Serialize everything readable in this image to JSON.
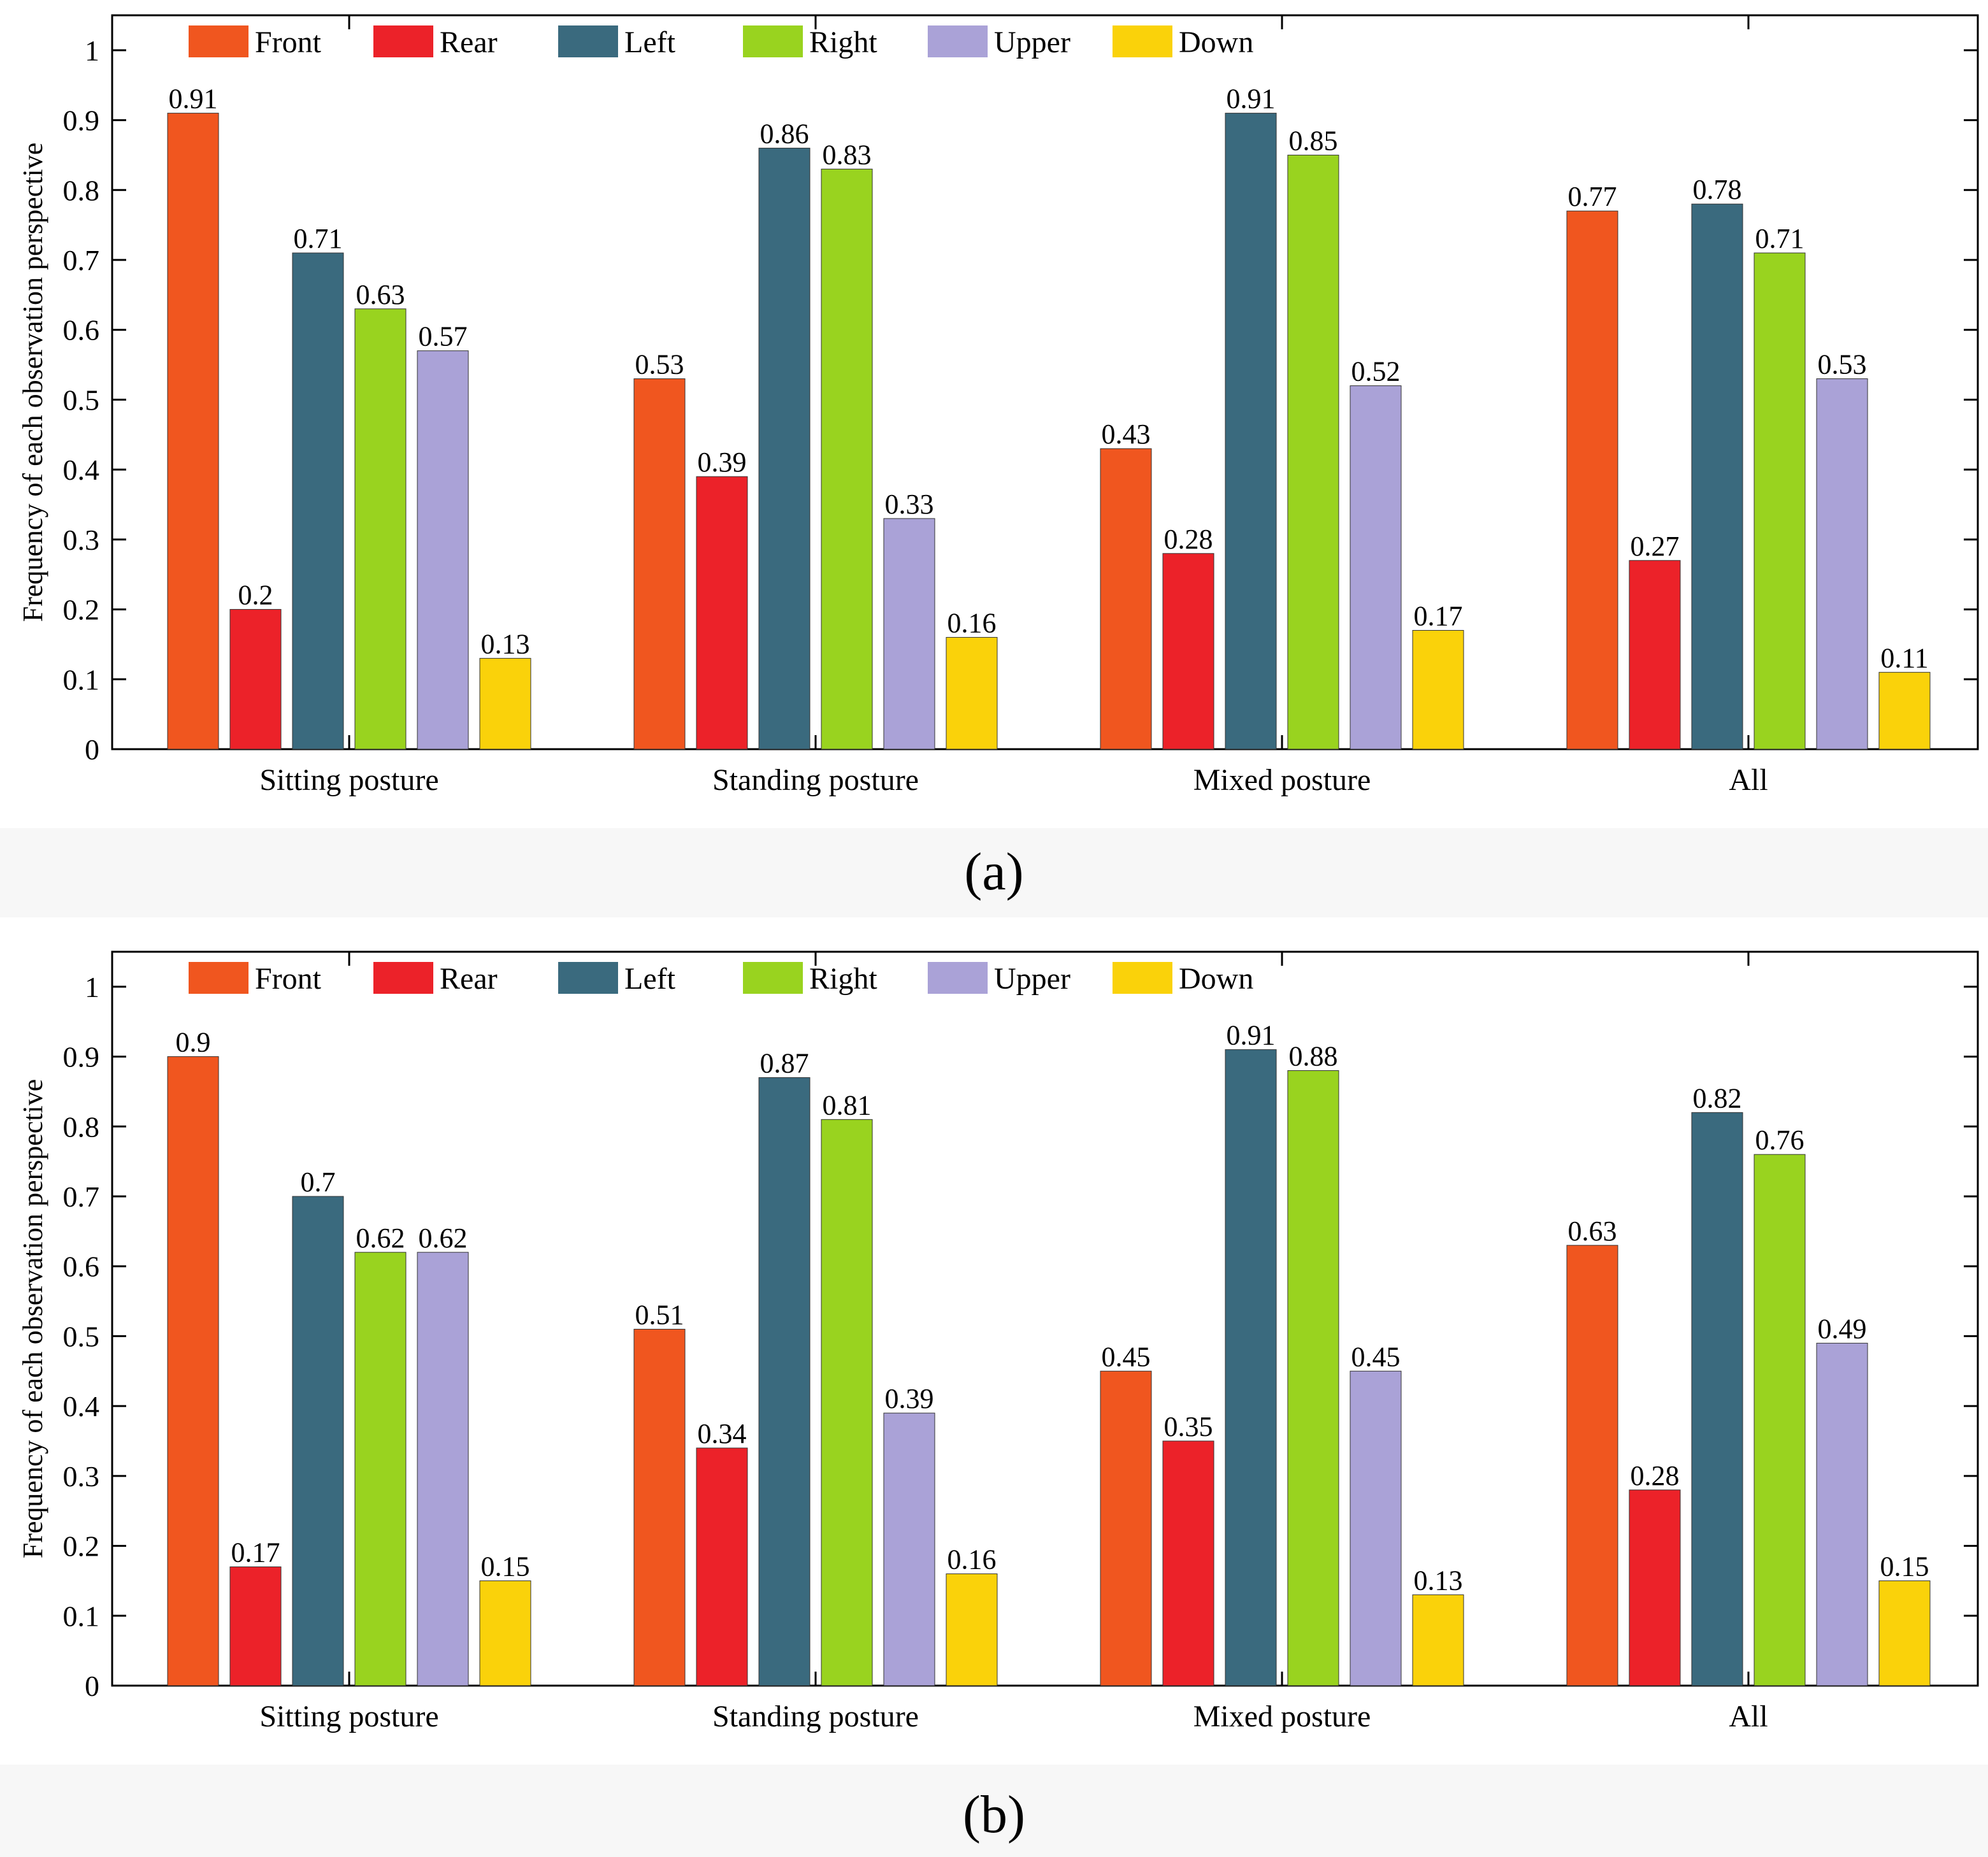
{
  "chart_data": [
    {
      "type": "bar",
      "panel_label": "(a)",
      "ylabel": "Frequency of each observation perspective",
      "ylim": [
        0,
        1.05
      ],
      "yticks": [
        0,
        0.1,
        0.2,
        0.3,
        0.4,
        0.5,
        0.6,
        0.7,
        0.8,
        0.9,
        1
      ],
      "categories": [
        "Sitting posture",
        "Standing posture",
        "Mixed posture",
        "All"
      ],
      "legend_position": "top",
      "series": [
        {
          "name": "Front",
          "color": "#f0561f",
          "values": [
            0.91,
            0.53,
            0.43,
            0.77
          ],
          "labels": [
            "0.91",
            "0.53",
            "0.43",
            "0.77"
          ]
        },
        {
          "name": "Rear",
          "color": "#ec2229",
          "values": [
            0.2,
            0.39,
            0.28,
            0.27
          ],
          "labels": [
            "0.2",
            "0.39",
            "0.28",
            "0.27"
          ]
        },
        {
          "name": "Left",
          "color": "#3a6a7e",
          "values": [
            0.71,
            0.86,
            0.91,
            0.78
          ],
          "labels": [
            "0.71",
            "0.86",
            "0.91",
            "0.78"
          ]
        },
        {
          "name": "Right",
          "color": "#99d31f",
          "values": [
            0.63,
            0.83,
            0.85,
            0.71
          ],
          "labels": [
            "0.63",
            "0.83",
            "0.85",
            "0.71"
          ]
        },
        {
          "name": "Upper",
          "color": "#aaa2d7",
          "values": [
            0.57,
            0.33,
            0.52,
            0.53
          ],
          "labels": [
            "0.57",
            "0.33",
            "0.52",
            "0.53"
          ]
        },
        {
          "name": "Down",
          "color": "#fad20a",
          "values": [
            0.13,
            0.16,
            0.17,
            0.11
          ],
          "labels": [
            "0.13",
            "0.16",
            "0.17",
            "0.11"
          ]
        }
      ]
    },
    {
      "type": "bar",
      "panel_label": "(b)",
      "ylabel": "Frequency of each observation perspective",
      "ylim": [
        0,
        1.05
      ],
      "yticks": [
        0,
        0.1,
        0.2,
        0.3,
        0.4,
        0.5,
        0.6,
        0.7,
        0.8,
        0.9,
        1
      ],
      "categories": [
        "Sitting posture",
        "Standing posture",
        "Mixed posture",
        "All"
      ],
      "legend_position": "top",
      "series": [
        {
          "name": "Front",
          "color": "#f0561f",
          "values": [
            0.9,
            0.51,
            0.45,
            0.63
          ],
          "labels": [
            "0.9",
            "0.51",
            "0.45",
            "0.63"
          ]
        },
        {
          "name": "Rear",
          "color": "#ec2229",
          "values": [
            0.17,
            0.34,
            0.35,
            0.28
          ],
          "labels": [
            "0.17",
            "0.34",
            "0.35",
            "0.28"
          ]
        },
        {
          "name": "Left",
          "color": "#3a6a7e",
          "values": [
            0.7,
            0.87,
            0.91,
            0.82
          ],
          "labels": [
            "0.7",
            "0.87",
            "0.91",
            "0.82"
          ]
        },
        {
          "name": "Right",
          "color": "#99d31f",
          "values": [
            0.62,
            0.81,
            0.88,
            0.76
          ],
          "labels": [
            "0.62",
            "0.81",
            "0.88",
            "0.76"
          ]
        },
        {
          "name": "Upper",
          "color": "#aaa2d7",
          "values": [
            0.62,
            0.39,
            0.45,
            0.49
          ],
          "labels": [
            "0.62",
            "0.39",
            "0.45",
            "0.49"
          ]
        },
        {
          "name": "Down",
          "color": "#fad20a",
          "values": [
            0.15,
            0.16,
            0.13,
            0.15
          ],
          "labels": [
            "0.15",
            "0.16",
            "0.13",
            "0.15"
          ]
        }
      ]
    }
  ]
}
